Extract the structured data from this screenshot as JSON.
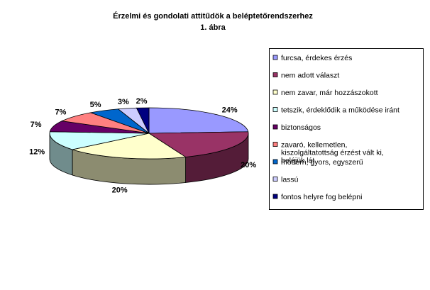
{
  "chart_data": {
    "type": "pie",
    "title": "Érzelmi és gondolati attitűdök a beléptetőrendszerhez",
    "subtitle": "1. ábra",
    "legend_position": "right",
    "slices": [
      {
        "name": "furcsa, érdekes érzés",
        "value": 24,
        "label": "24%",
        "color": "#9999FF"
      },
      {
        "name": "nem adott választ",
        "value": 20,
        "label": "20%",
        "color": "#993366"
      },
      {
        "name": "nem zavar, már hozzászokott",
        "value": 20,
        "label": "20%",
        "color": "#FFFFCC"
      },
      {
        "name": "tetszik, érdeklődik a működése iránt",
        "value": 12,
        "label": "12%",
        "color": "#CCFFFF"
      },
      {
        "name": "biztonságos",
        "value": 7,
        "label": "7%",
        "color": "#660066"
      },
      {
        "name": "zavaró, kellemetlen, kiszolgáltatottság érzést vált ki, beléjük lát",
        "value": 7,
        "label": "7%",
        "color": "#FF8080"
      },
      {
        "name": "modern, gyors, egyszerű",
        "value": 5,
        "label": "5%",
        "color": "#0066CC"
      },
      {
        "name": "lassú",
        "value": 3,
        "label": "3%",
        "color": "#CCCCFF"
      },
      {
        "name": "fontos helyre fog belépni",
        "value": 2,
        "label": "2%",
        "color": "#000080"
      }
    ]
  }
}
